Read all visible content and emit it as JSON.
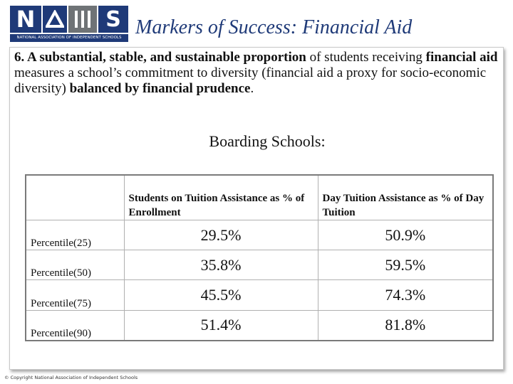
{
  "header": {
    "logo_letters": {
      "n": "N",
      "s": "S"
    },
    "logo_caption": "NATIONAL ASSOCIATION OF INDEPENDENT SCHOOLS",
    "title": "Markers of Success: Financial Aid"
  },
  "paragraph": {
    "lead_bold": "6. A substantial, stable, and sustainable proportion",
    "mid1": " of students receiving ",
    "bold2": "financial aid",
    "mid2": " measures a school’s commitment to diversity (financial aid a proxy for socio-economic diversity) ",
    "bold3": "balanced by financial prudence",
    "end": "."
  },
  "subheading": "Boarding  Schools:",
  "table": {
    "headers": [
      "",
      "Students on Tuition Assistance as % of Enrollment",
      "Day Tuition Assistance as % of Day Tuition"
    ],
    "rows": [
      {
        "label": "Percentile(25)",
        "students": "29.5%",
        "day": "50.9%"
      },
      {
        "label": "Percentile(50)",
        "students": "35.8%",
        "day": "59.5%"
      },
      {
        "label": "Percentile(75)",
        "students": "45.5%",
        "day": "74.3%"
      },
      {
        "label": "Percentile(90)",
        "students": "51.4%",
        "day": "81.8%"
      }
    ]
  },
  "footer": {
    "copyright": "© Copyright National Association of Independent Schools"
  },
  "colors": {
    "brand_blue": "#1f3a78",
    "logo_gray": "#6f7376"
  }
}
